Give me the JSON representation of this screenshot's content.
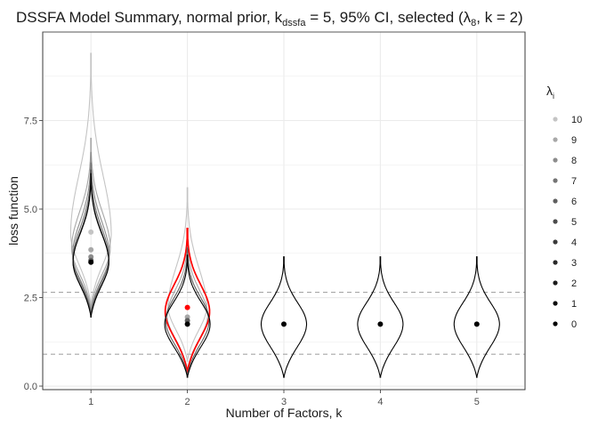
{
  "chart_data": {
    "type": "violin",
    "title": {
      "prefix": "DSSFA Model Summary, normal prior, k",
      "k_subscript": "dssfa",
      "middle": " = 5, 95% CI, selected (λ",
      "lambda_subscript": "8",
      "suffix": ", k = 2)"
    },
    "xlabel": "Number of Factors, k",
    "ylabel": "loss function",
    "x_ticks": [
      "1",
      "2",
      "3",
      "4",
      "5"
    ],
    "y_ticks": [
      "0.0",
      "2.5",
      "5.0",
      "7.5"
    ],
    "ylim": [
      -0.1,
      10.0
    ],
    "grid": true,
    "ci_lines": [
      0.9,
      2.65
    ],
    "legend": {
      "title_symbol": "λ",
      "title_subscript": "i",
      "position": "right",
      "entries": [
        {
          "label": "10",
          "color": "#c4c4c4"
        },
        {
          "label": "9",
          "color": "#a8a8a8"
        },
        {
          "label": "8",
          "color": "#8c8c8c"
        },
        {
          "label": "7",
          "color": "#747474"
        },
        {
          "label": "6",
          "color": "#5f5f5f"
        },
        {
          "label": "5",
          "color": "#4b4b4b"
        },
        {
          "label": "4",
          "color": "#393939"
        },
        {
          "label": "3",
          "color": "#282828"
        },
        {
          "label": "2",
          "color": "#1a1a1a"
        },
        {
          "label": "1",
          "color": "#0c0c0c"
        },
        {
          "label": "0",
          "color": "#000000"
        }
      ]
    },
    "highlight_color": "#ff0000",
    "groups": [
      {
        "k": "1",
        "violins": [
          {
            "lambda": "10",
            "mode": 4.3,
            "min": 2.3,
            "max": 9.4,
            "width": 0.42
          },
          {
            "lambda": "9",
            "mode": 3.9,
            "min": 2.2,
            "max": 7.0,
            "width": 0.4
          },
          {
            "lambda": "8",
            "mode": 3.7,
            "min": 2.1,
            "max": 6.6,
            "width": 0.38
          },
          {
            "lambda": "7",
            "mode": 3.6,
            "min": 2.05,
            "max": 6.3,
            "width": 0.37
          },
          {
            "lambda": "5",
            "mode": 3.5,
            "min": 2.0,
            "max": 6.1,
            "width": 0.37
          },
          {
            "lambda": "0",
            "mode": 3.5,
            "min": 1.95,
            "max": 6.0,
            "width": 0.37
          }
        ],
        "medians": [
          {
            "lambda": "10",
            "value": 4.35
          },
          {
            "lambda": "9",
            "value": 3.85
          },
          {
            "lambda": "8",
            "value": 3.65
          },
          {
            "lambda": "6",
            "value": 3.55
          },
          {
            "lambda": "0",
            "value": 3.5
          }
        ]
      },
      {
        "k": "2",
        "violins": [
          {
            "lambda": "10",
            "mode": 2.25,
            "min": 0.7,
            "max": 5.6,
            "width": 0.4
          },
          {
            "lambda": "9",
            "mode": 2.0,
            "min": 0.45,
            "max": 4.2,
            "width": 0.42
          },
          {
            "lambda": "8",
            "mode": 2.1,
            "min": 0.4,
            "max": 4.45,
            "width": 0.46,
            "highlight": true
          },
          {
            "lambda": "6",
            "mode": 1.85,
            "min": 0.3,
            "max": 3.9,
            "width": 0.45
          },
          {
            "lambda": "0",
            "mode": 1.75,
            "min": 0.25,
            "max": 3.7,
            "width": 0.47
          }
        ],
        "medians": [
          {
            "lambda": "8",
            "value": 2.22,
            "highlight": true
          },
          {
            "lambda": "9",
            "value": 1.95
          },
          {
            "lambda": "6",
            "value": 1.85
          },
          {
            "lambda": "0",
            "value": 1.75
          }
        ]
      },
      {
        "k": "3",
        "violins": [
          {
            "lambda": "0",
            "mode": 1.75,
            "min": 0.25,
            "max": 3.65,
            "width": 0.47
          }
        ],
        "medians": [
          {
            "lambda": "0",
            "value": 1.75
          }
        ]
      },
      {
        "k": "4",
        "violins": [
          {
            "lambda": "0",
            "mode": 1.75,
            "min": 0.25,
            "max": 3.65,
            "width": 0.47
          }
        ],
        "medians": [
          {
            "lambda": "0",
            "value": 1.75
          }
        ]
      },
      {
        "k": "5",
        "violins": [
          {
            "lambda": "0",
            "mode": 1.75,
            "min": 0.25,
            "max": 3.65,
            "width": 0.47
          }
        ],
        "medians": [
          {
            "lambda": "0",
            "value": 1.75
          }
        ]
      }
    ]
  }
}
